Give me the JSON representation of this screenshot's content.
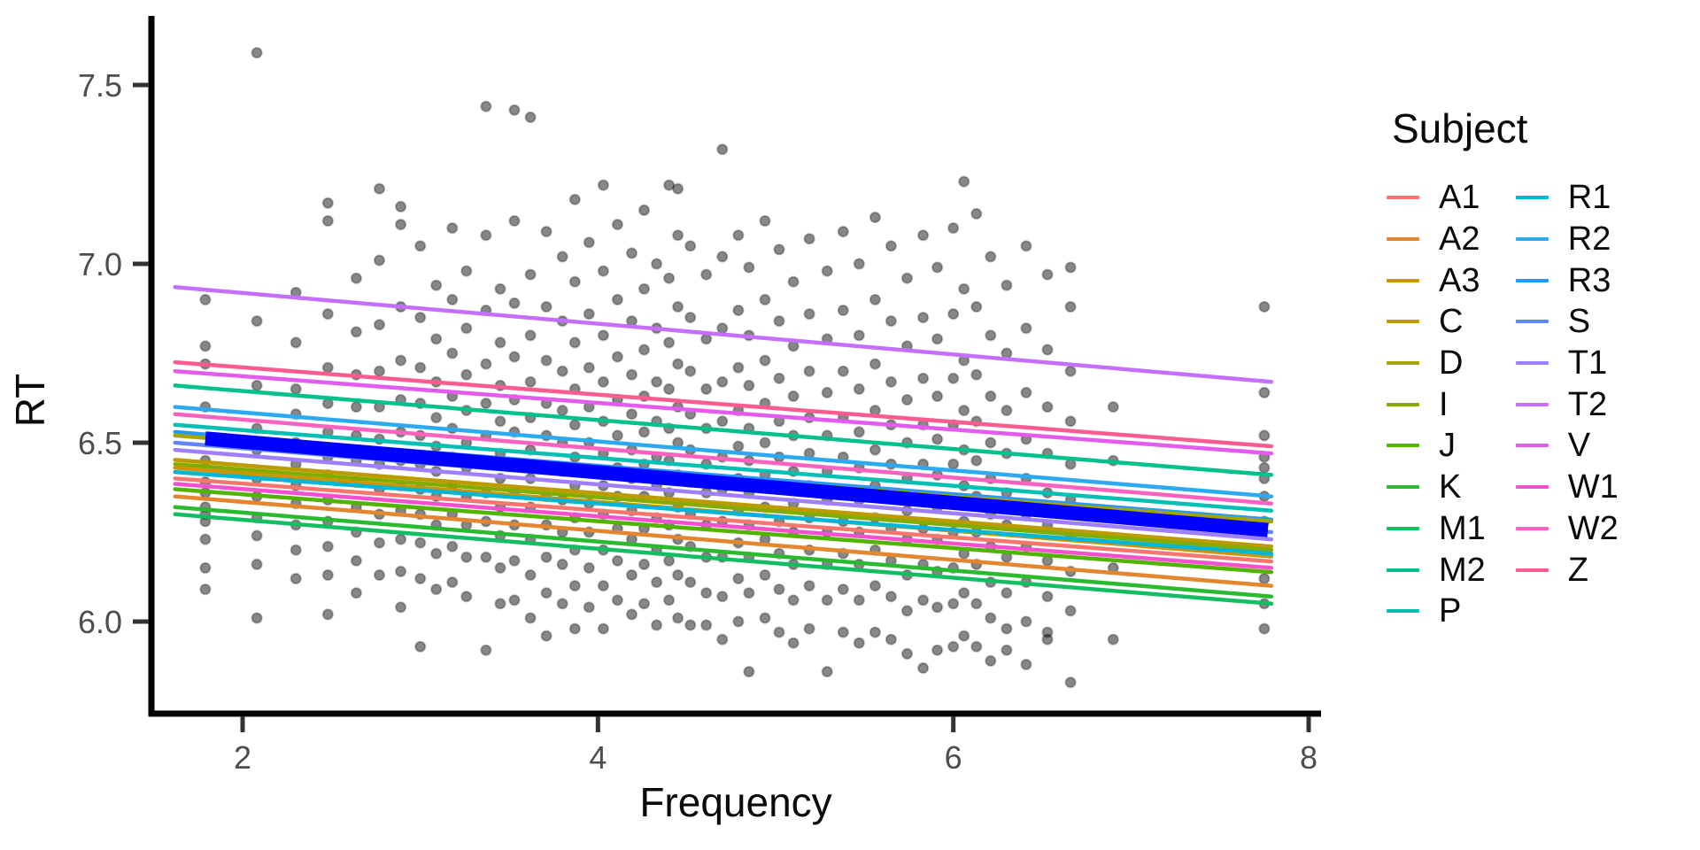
{
  "legend": {
    "title": "Subject",
    "columns": [
      [
        {
          "label": "A1",
          "color": "#F8766D"
        },
        {
          "label": "A2",
          "color": "#E4862E"
        },
        {
          "label": "A3",
          "color": "#CF9400"
        },
        {
          "label": "C",
          "color": "#BD9B00"
        },
        {
          "label": "D",
          "color": "#A4A500"
        },
        {
          "label": "I",
          "color": "#82AD00"
        },
        {
          "label": "J",
          "color": "#51B400"
        },
        {
          "label": "K",
          "color": "#29BA2E"
        },
        {
          "label": "M1",
          "color": "#12BE62"
        },
        {
          "label": "M2",
          "color": "#00C08B"
        },
        {
          "label": "P",
          "color": "#00C0B4"
        }
      ],
      [
        {
          "label": "R1",
          "color": "#00B6D8"
        },
        {
          "label": "R2",
          "color": "#2BAAF2"
        },
        {
          "label": "R3",
          "color": "#2499FF"
        },
        {
          "label": "S",
          "color": "#6286FF"
        },
        {
          "label": "T1",
          "color": "#9F7FFF"
        },
        {
          "label": "T2",
          "color": "#C46FFF"
        },
        {
          "label": "V",
          "color": "#E45CEF"
        },
        {
          "label": "W1",
          "color": "#F750CE"
        },
        {
          "label": "W2",
          "color": "#FB61BE"
        },
        {
          "label": "Z",
          "color": "#FB5C8D"
        }
      ]
    ]
  },
  "chart_data": {
    "type": "scatter",
    "title": "",
    "xlabel": "Frequency",
    "ylabel": "RT",
    "xlim": [
      1.49,
      8.07
    ],
    "ylim": [
      5.74,
      7.69
    ],
    "grid": false,
    "legend_position": "right",
    "x_ticks": [
      {
        "label": "2",
        "value": 2
      },
      {
        "label": "4",
        "value": 4
      },
      {
        "label": "6",
        "value": 6
      },
      {
        "label": "8",
        "value": 8
      }
    ],
    "y_ticks": [
      {
        "label": "6.0",
        "value": 6.0
      },
      {
        "label": "6.5",
        "value": 6.5
      },
      {
        "label": "7.0",
        "value": 7.0
      },
      {
        "label": "7.5",
        "value": 7.5
      }
    ],
    "point_style": {
      "color": "#000000",
      "opacity": 0.47,
      "radius": 5.6
    },
    "overall_line": {
      "name": "fixed-effect-fit",
      "color": "#0000FF",
      "width": 16,
      "x": [
        1.79,
        7.77
      ],
      "y": [
        6.512,
        6.256
      ]
    },
    "subject_lines": [
      {
        "label": "T2",
        "color": "#C46FFF",
        "x": [
          1.62,
          7.79
        ],
        "y": [
          6.935,
          6.67
        ]
      },
      {
        "label": "Z",
        "color": "#FB5C8D",
        "x": [
          1.62,
          7.79
        ],
        "y": [
          6.725,
          6.49
        ]
      },
      {
        "label": "V",
        "color": "#E45CEF",
        "x": [
          1.62,
          7.79
        ],
        "y": [
          6.7,
          6.47
        ]
      },
      {
        "label": "M2",
        "color": "#00C08B",
        "x": [
          1.62,
          7.79
        ],
        "y": [
          6.66,
          6.41
        ]
      },
      {
        "label": "R2",
        "color": "#2BAAF2",
        "x": [
          1.62,
          7.79
        ],
        "y": [
          6.6,
          6.35
        ]
      },
      {
        "label": "W2",
        "color": "#FB61BE",
        "x": [
          1.62,
          7.79
        ],
        "y": [
          6.58,
          6.33
        ]
      },
      {
        "label": "P",
        "color": "#00C0B4",
        "x": [
          1.62,
          7.79
        ],
        "y": [
          6.55,
          6.31
        ]
      },
      {
        "label": "R3",
        "color": "#2499FF",
        "x": [
          1.62,
          7.79
        ],
        "y": [
          6.53,
          6.285
        ]
      },
      {
        "label": "D",
        "color": "#A4A500",
        "x": [
          1.62,
          7.79
        ],
        "y": [
          6.52,
          6.28
        ]
      },
      {
        "label": "S",
        "color": "#6286FF",
        "x": [
          1.62,
          7.79
        ],
        "y": [
          6.5,
          6.25
        ]
      },
      {
        "label": "T1",
        "color": "#9F7FFF",
        "x": [
          1.62,
          7.79
        ],
        "y": [
          6.48,
          6.23
        ]
      },
      {
        "label": "C",
        "color": "#BD9B00",
        "x": [
          1.62,
          7.79
        ],
        "y": [
          6.452,
          6.21
        ]
      },
      {
        "label": "I",
        "color": "#82AD00",
        "x": [
          1.62,
          7.79
        ],
        "y": [
          6.44,
          6.2
        ]
      },
      {
        "label": "A3",
        "color": "#CF9400",
        "x": [
          1.62,
          7.79
        ],
        "y": [
          6.43,
          6.182
        ]
      },
      {
        "label": "R1",
        "color": "#00B6D8",
        "x": [
          1.62,
          7.79
        ],
        "y": [
          6.418,
          6.19
        ]
      },
      {
        "label": "A1",
        "color": "#F8766D",
        "x": [
          1.62,
          7.79
        ],
        "y": [
          6.4,
          6.168
        ]
      },
      {
        "label": "W1",
        "color": "#F750CE",
        "x": [
          1.62,
          7.79
        ],
        "y": [
          6.385,
          6.15
        ]
      },
      {
        "label": "J",
        "color": "#51B400",
        "x": [
          1.62,
          7.79
        ],
        "y": [
          6.37,
          6.138
        ]
      },
      {
        "label": "A2",
        "color": "#E4862E",
        "x": [
          1.62,
          7.79
        ],
        "y": [
          6.35,
          6.1
        ]
      },
      {
        "label": "K",
        "color": "#29BA2E",
        "x": [
          1.62,
          7.79
        ],
        "y": [
          6.32,
          6.07
        ]
      },
      {
        "label": "M1",
        "color": "#12BE62",
        "x": [
          1.62,
          7.79
        ],
        "y": [
          6.3,
          6.05
        ]
      }
    ],
    "stripes": [
      [
        1.79,
        [
          6.9,
          6.77,
          6.72,
          6.6,
          6.45,
          6.39,
          6.36,
          6.32,
          6.3,
          6.28,
          6.23,
          6.15,
          6.09
        ]
      ],
      [
        2.08,
        [
          7.59,
          6.84,
          6.66,
          6.54,
          6.48,
          6.4,
          6.35,
          6.29,
          6.24,
          6.16,
          6.01
        ]
      ],
      [
        2.3,
        [
          6.92,
          6.78,
          6.65,
          6.58,
          6.5,
          6.44,
          6.38,
          6.33,
          6.27,
          6.2,
          6.12
        ]
      ],
      [
        2.48,
        [
          7.17,
          7.12,
          6.86,
          6.71,
          6.61,
          6.53,
          6.46,
          6.41,
          6.34,
          6.28,
          6.21,
          6.13,
          6.02
        ]
      ],
      [
        2.64,
        [
          6.96,
          6.81,
          6.69,
          6.6,
          6.52,
          6.45,
          6.39,
          6.32,
          6.25,
          6.17,
          6.08
        ]
      ],
      [
        2.77,
        [
          7.21,
          7.01,
          6.83,
          6.7,
          6.6,
          6.51,
          6.44,
          6.37,
          6.3,
          6.22,
          6.13
        ]
      ],
      [
        2.89,
        [
          7.16,
          7.11,
          6.88,
          6.73,
          6.62,
          6.53,
          6.45,
          6.38,
          6.31,
          6.23,
          6.14,
          6.04
        ]
      ],
      [
        3.0,
        [
          7.05,
          6.85,
          6.71,
          6.61,
          6.52,
          6.44,
          6.37,
          6.3,
          6.22,
          6.12,
          5.93
        ]
      ],
      [
        3.09,
        [
          6.94,
          6.79,
          6.67,
          6.57,
          6.49,
          6.42,
          6.35,
          6.27,
          6.19,
          6.09
        ]
      ],
      [
        3.18,
        [
          7.1,
          6.9,
          6.75,
          6.63,
          6.54,
          6.46,
          6.38,
          6.3,
          6.21,
          6.11
        ]
      ],
      [
        3.26,
        [
          6.98,
          6.82,
          6.69,
          6.59,
          6.5,
          6.43,
          6.35,
          6.27,
          6.18,
          6.07
        ]
      ],
      [
        3.37,
        [
          7.44,
          7.08,
          6.87,
          6.72,
          6.61,
          6.52,
          6.44,
          6.36,
          6.28,
          6.18,
          5.92
        ]
      ],
      [
        3.45,
        [
          6.93,
          6.78,
          6.66,
          6.56,
          6.47,
          6.4,
          6.32,
          6.24,
          6.15,
          6.05
        ]
      ],
      [
        3.53,
        [
          7.43,
          7.12,
          6.89,
          6.74,
          6.62,
          6.53,
          6.44,
          6.36,
          6.27,
          6.17,
          6.06
        ]
      ],
      [
        3.62,
        [
          7.41,
          6.97,
          6.8,
          6.67,
          6.57,
          6.48,
          6.4,
          6.32,
          6.23,
          6.13,
          6.01
        ]
      ],
      [
        3.71,
        [
          7.09,
          6.88,
          6.73,
          6.61,
          6.52,
          6.43,
          6.35,
          6.27,
          6.18,
          6.08,
          5.96
        ]
      ],
      [
        3.8,
        [
          7.02,
          6.84,
          6.7,
          6.59,
          6.5,
          6.42,
          6.34,
          6.25,
          6.16,
          6.05
        ]
      ],
      [
        3.87,
        [
          7.18,
          6.95,
          6.78,
          6.65,
          6.55,
          6.46,
          6.38,
          6.29,
          6.2,
          6.1,
          5.98
        ]
      ],
      [
        3.95,
        [
          7.06,
          6.86,
          6.71,
          6.6,
          6.5,
          6.42,
          6.33,
          6.25,
          6.15,
          6.04
        ]
      ],
      [
        4.03,
        [
          7.22,
          6.98,
          6.8,
          6.67,
          6.56,
          6.47,
          6.38,
          6.3,
          6.2,
          6.1,
          5.98
        ]
      ],
      [
        4.11,
        [
          7.11,
          6.9,
          6.74,
          6.62,
          6.52,
          6.43,
          6.35,
          6.26,
          6.17,
          6.06
        ]
      ],
      [
        4.19,
        [
          7.03,
          6.84,
          6.69,
          6.58,
          6.48,
          6.4,
          6.31,
          6.23,
          6.13,
          6.02
        ]
      ],
      [
        4.26,
        [
          7.15,
          6.93,
          6.76,
          6.63,
          6.53,
          6.44,
          6.35,
          6.26,
          6.16,
          6.05
        ]
      ],
      [
        4.33,
        [
          7.0,
          6.82,
          6.67,
          6.56,
          6.46,
          6.38,
          6.29,
          6.2,
          6.11,
          5.99
        ]
      ],
      [
        4.4,
        [
          7.22,
          6.96,
          6.78,
          6.65,
          6.54,
          6.45,
          6.36,
          6.27,
          6.17,
          6.06
        ]
      ],
      [
        4.45,
        [
          7.21,
          7.08,
          6.88,
          6.72,
          6.6,
          6.5,
          6.41,
          6.32,
          6.23,
          6.13,
          6.01
        ]
      ],
      [
        4.52,
        [
          7.05,
          6.85,
          6.7,
          6.58,
          6.48,
          6.39,
          6.3,
          6.21,
          6.11,
          5.99
        ]
      ],
      [
        4.61,
        [
          6.97,
          6.79,
          6.65,
          6.54,
          6.44,
          6.36,
          6.27,
          6.18,
          6.08,
          5.99
        ]
      ],
      [
        4.7,
        [
          7.32,
          7.02,
          6.82,
          6.67,
          6.56,
          6.46,
          6.37,
          6.28,
          6.18,
          6.07,
          5.95
        ]
      ],
      [
        4.79,
        [
          7.08,
          6.87,
          6.71,
          6.59,
          6.49,
          6.4,
          6.31,
          6.22,
          6.12,
          6.0
        ]
      ],
      [
        4.85,
        [
          6.99,
          6.8,
          6.66,
          6.54,
          6.45,
          6.36,
          6.27,
          6.18,
          6.08,
          5.86
        ]
      ],
      [
        4.94,
        [
          7.12,
          6.9,
          6.73,
          6.61,
          6.5,
          6.41,
          6.32,
          6.23,
          6.13,
          6.01
        ]
      ],
      [
        5.02,
        [
          7.04,
          6.84,
          6.68,
          6.56,
          6.46,
          6.37,
          6.28,
          6.19,
          6.09,
          5.97
        ]
      ],
      [
        5.1,
        [
          6.95,
          6.77,
          6.63,
          6.52,
          6.42,
          6.33,
          6.25,
          6.16,
          6.06,
          5.94
        ]
      ],
      [
        5.19,
        [
          7.07,
          6.86,
          6.7,
          6.57,
          6.47,
          6.38,
          6.29,
          6.2,
          6.1,
          5.98
        ]
      ],
      [
        5.29,
        [
          6.98,
          6.79,
          6.64,
          6.52,
          6.42,
          6.34,
          6.25,
          6.16,
          6.06,
          5.86
        ]
      ],
      [
        5.38,
        [
          7.09,
          6.87,
          6.7,
          6.57,
          6.46,
          6.37,
          6.28,
          6.19,
          6.09,
          5.97
        ]
      ],
      [
        5.47,
        [
          7.0,
          6.8,
          6.65,
          6.53,
          6.43,
          6.34,
          6.25,
          6.16,
          6.06,
          5.94
        ]
      ],
      [
        5.56,
        [
          7.13,
          6.9,
          6.72,
          6.59,
          6.48,
          6.38,
          6.29,
          6.2,
          6.1,
          5.97
        ]
      ],
      [
        5.65,
        [
          7.05,
          6.84,
          6.67,
          6.55,
          6.44,
          6.35,
          6.26,
          6.17,
          6.07,
          5.95
        ]
      ],
      [
        5.74,
        [
          6.96,
          6.77,
          6.62,
          6.5,
          6.4,
          6.31,
          6.23,
          6.13,
          6.03,
          5.91
        ]
      ],
      [
        5.83,
        [
          7.08,
          6.85,
          6.68,
          6.55,
          6.44,
          6.35,
          6.26,
          6.16,
          6.06,
          5.87
        ]
      ],
      [
        5.91,
        [
          6.99,
          6.79,
          6.63,
          6.51,
          6.41,
          6.32,
          6.23,
          6.14,
          6.04,
          5.92
        ]
      ],
      [
        6.0,
        [
          7.1,
          6.86,
          6.68,
          6.55,
          6.44,
          6.34,
          6.25,
          6.15,
          6.05,
          5.93
        ]
      ],
      [
        6.06,
        [
          7.23,
          6.93,
          6.73,
          6.59,
          6.48,
          6.38,
          6.28,
          6.19,
          6.08,
          5.96
        ]
      ],
      [
        6.13,
        [
          7.14,
          6.88,
          6.69,
          6.56,
          6.45,
          6.35,
          6.25,
          6.16,
          6.05,
          5.93
        ]
      ],
      [
        6.21,
        [
          7.02,
          6.8,
          6.63,
          6.5,
          6.4,
          6.3,
          6.21,
          6.11,
          6.01,
          5.89
        ]
      ],
      [
        6.3,
        [
          6.94,
          6.75,
          6.59,
          6.47,
          6.36,
          6.27,
          6.18,
          6.08,
          5.98,
          5.92
        ]
      ],
      [
        6.41,
        [
          7.05,
          6.82,
          6.64,
          6.51,
          6.4,
          6.3,
          6.21,
          6.11,
          6.0,
          5.88
        ]
      ],
      [
        6.53,
        [
          6.97,
          6.76,
          6.6,
          6.47,
          6.36,
          6.27,
          6.17,
          6.07,
          5.97,
          5.95
        ]
      ],
      [
        6.66,
        [
          6.99,
          6.88,
          6.7,
          6.56,
          6.44,
          6.34,
          6.24,
          6.14,
          6.03,
          5.83
        ]
      ],
      [
        6.9,
        [
          6.6,
          6.45,
          6.3,
          6.15,
          5.95
        ]
      ],
      [
        7.75,
        [
          6.88,
          6.64,
          6.52,
          6.46,
          6.43,
          6.4,
          6.35,
          6.28,
          6.2,
          6.12,
          6.05,
          5.98
        ]
      ]
    ]
  }
}
